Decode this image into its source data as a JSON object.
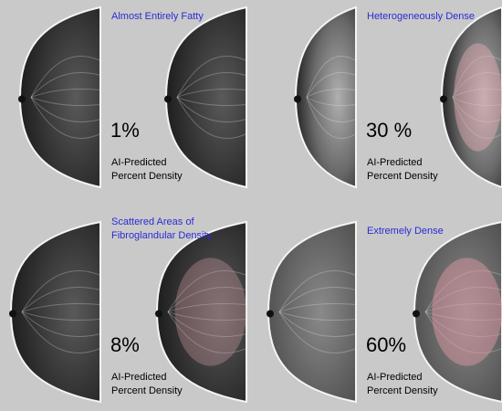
{
  "panels": [
    {
      "title_lines": [
        "Almost Entirely Fatty"
      ],
      "percent": "1%",
      "label_lines": [
        "AI-Predicted",
        "Percent Density"
      ]
    },
    {
      "title_lines": [
        "Heterogeneously Dense"
      ],
      "percent": "30 %",
      "label_lines": [
        "AI-Predicted",
        "Percent Density"
      ]
    },
    {
      "title_lines": [
        "Scattered Areas of",
        "Fibroglandular Density"
      ],
      "percent": "8%",
      "label_lines": [
        "AI-Predicted",
        "Percent Density"
      ]
    },
    {
      "title_lines": [
        "Extremely Dense"
      ],
      "percent": "60%",
      "label_lines": [
        "AI-Predicted",
        "Percent Density"
      ]
    }
  ]
}
